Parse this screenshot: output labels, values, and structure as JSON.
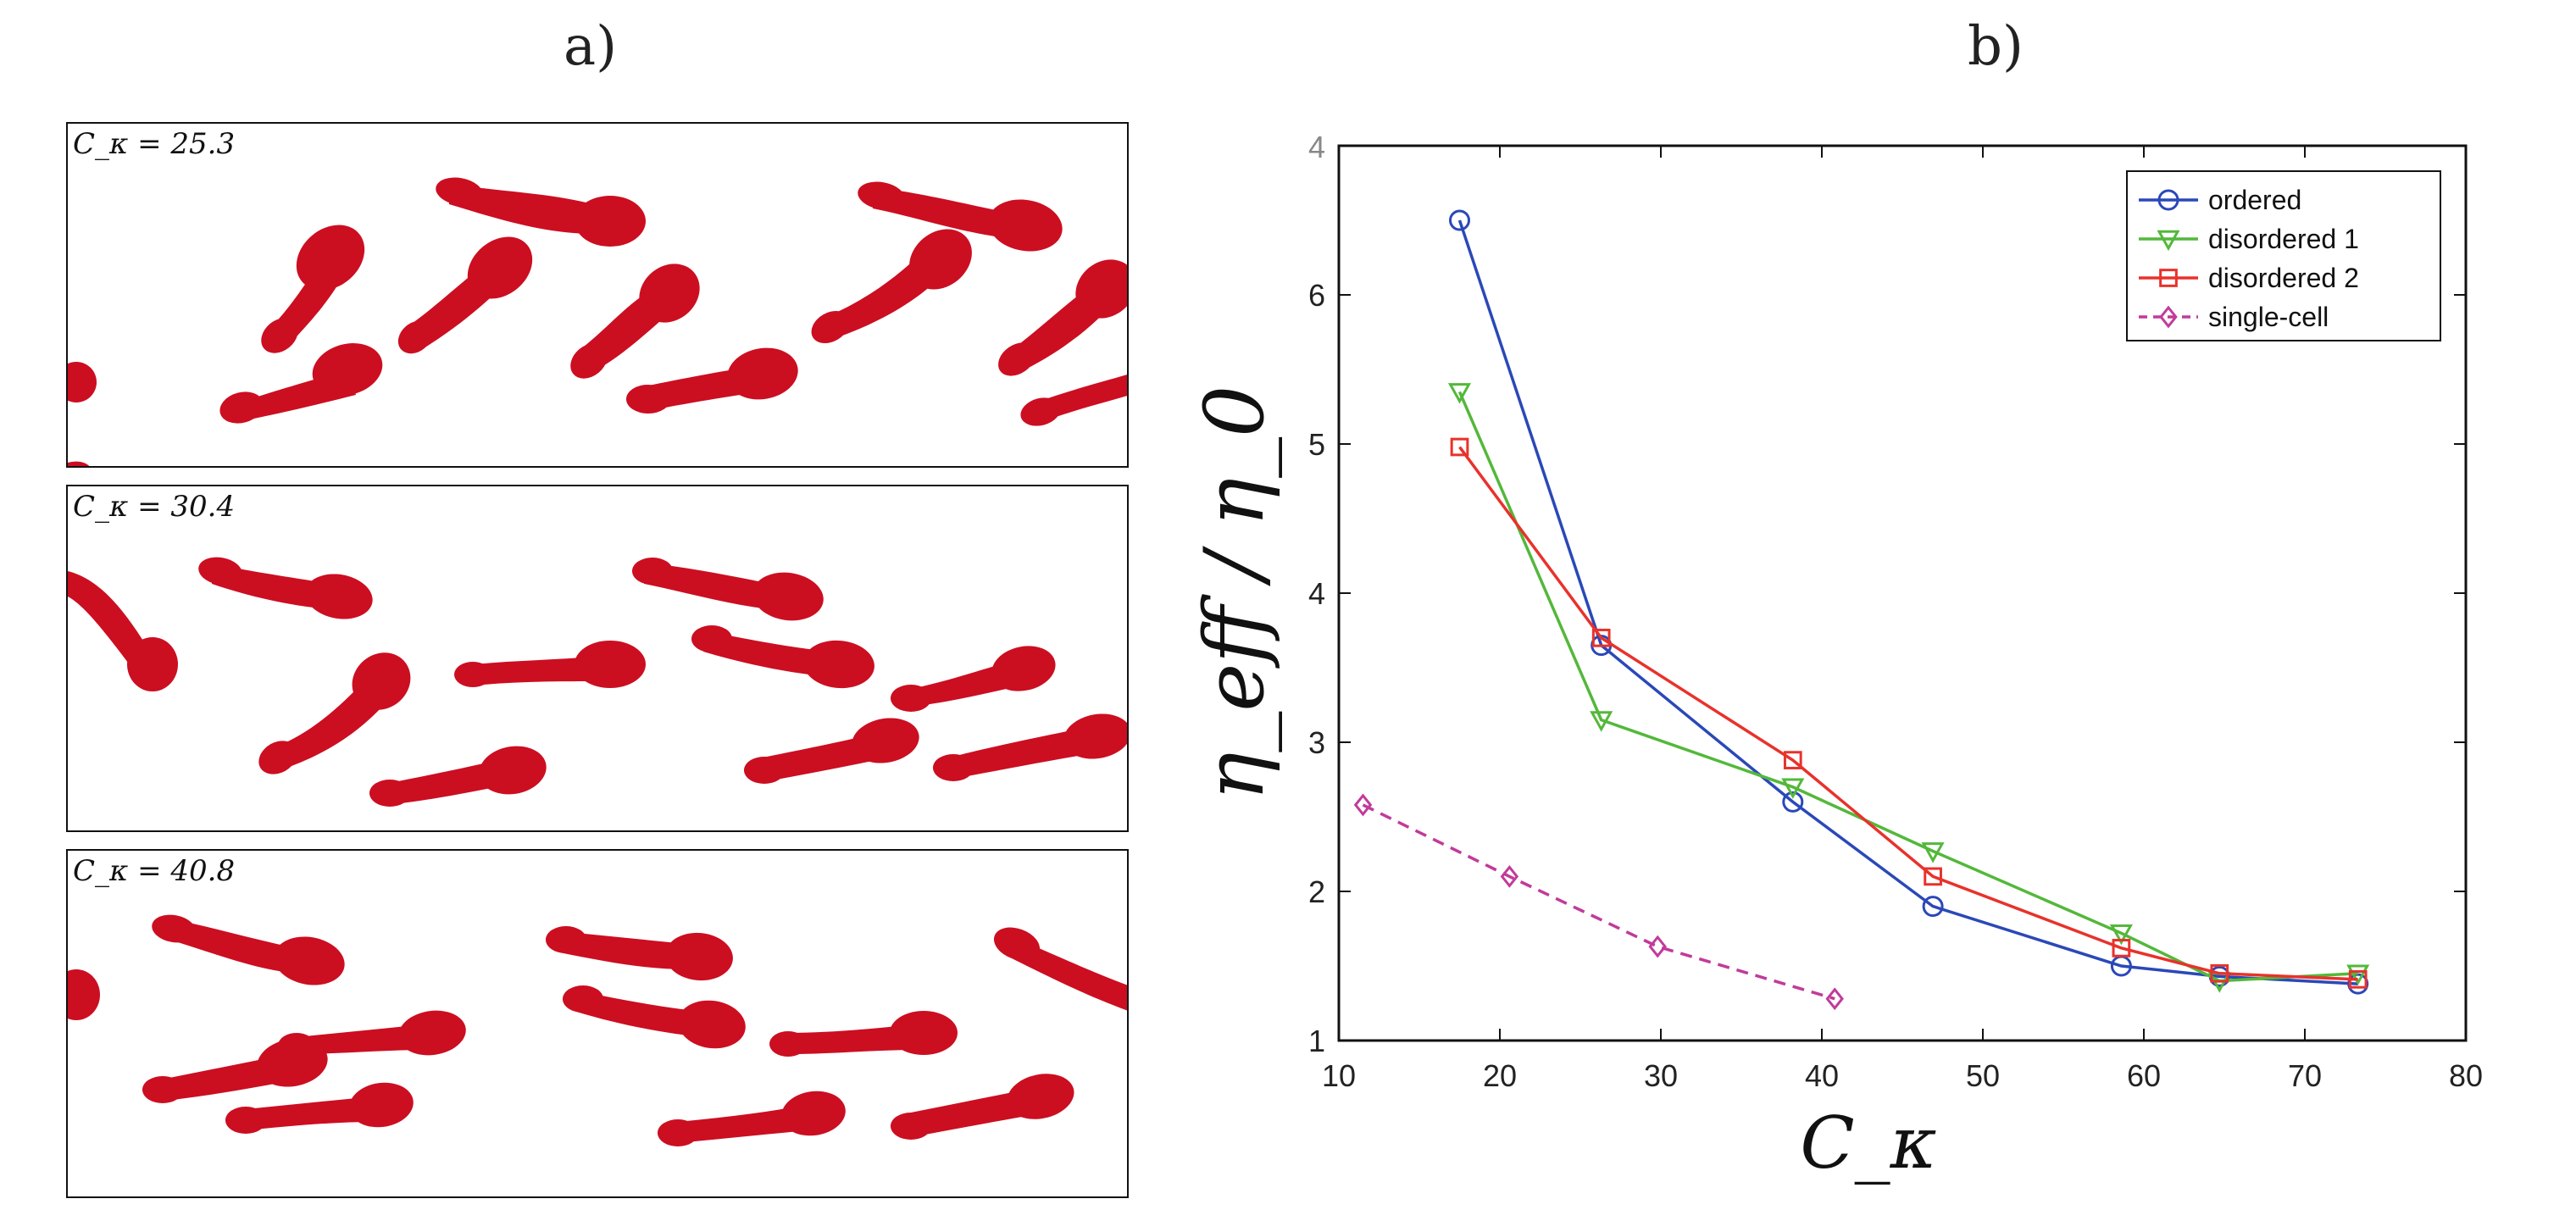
{
  "panels": {
    "a_label": "a)",
    "b_label": "b)",
    "snapshots": [
      {
        "label": "C_κ = 25.3"
      },
      {
        "label": "C_κ = 30.4"
      },
      {
        "label": "C_κ = 40.8"
      }
    ]
  },
  "colors": {
    "cell_red": "#cc0e21",
    "ordered": "#2a48b8",
    "disordered1": "#53b83a",
    "disordered2": "#e8322b",
    "single_cell": "#c23a9a"
  },
  "chart_data": {
    "type": "line",
    "title": "",
    "xlabel": "C_κ",
    "ylabel": "η_eff / η_0",
    "xlim": [
      10,
      80
    ],
    "ylim": [
      1,
      7
    ],
    "xticks": [
      10,
      20,
      30,
      40,
      50,
      60,
      70,
      80
    ],
    "yticks": [
      1,
      2,
      3,
      4,
      5,
      6
    ],
    "ytick_top_label": "4",
    "legend_position": "top-right",
    "series": [
      {
        "name": "ordered",
        "marker": "circle",
        "style": "solid",
        "x": [
          17.5,
          26.3,
          38.2,
          46.9,
          58.6,
          64.7,
          73.3
        ],
        "y": [
          6.5,
          3.65,
          2.6,
          1.9,
          1.5,
          1.43,
          1.38
        ]
      },
      {
        "name": "disordered 1",
        "marker": "triangle-down",
        "style": "solid",
        "x": [
          17.5,
          26.3,
          38.2,
          46.9,
          58.6,
          64.7,
          73.3
        ],
        "y": [
          5.35,
          3.15,
          2.7,
          2.27,
          1.72,
          1.4,
          1.45
        ]
      },
      {
        "name": "disordered 2",
        "marker": "square",
        "style": "solid",
        "x": [
          17.5,
          26.3,
          38.2,
          46.9,
          58.6,
          64.7,
          73.3
        ],
        "y": [
          4.98,
          3.7,
          2.88,
          2.1,
          1.62,
          1.45,
          1.41
        ]
      },
      {
        "name": "single-cell",
        "marker": "diamond",
        "style": "dashed",
        "x": [
          11.5,
          20.6,
          29.8,
          40.8
        ],
        "y": [
          2.58,
          2.1,
          1.63,
          1.28
        ]
      }
    ]
  }
}
